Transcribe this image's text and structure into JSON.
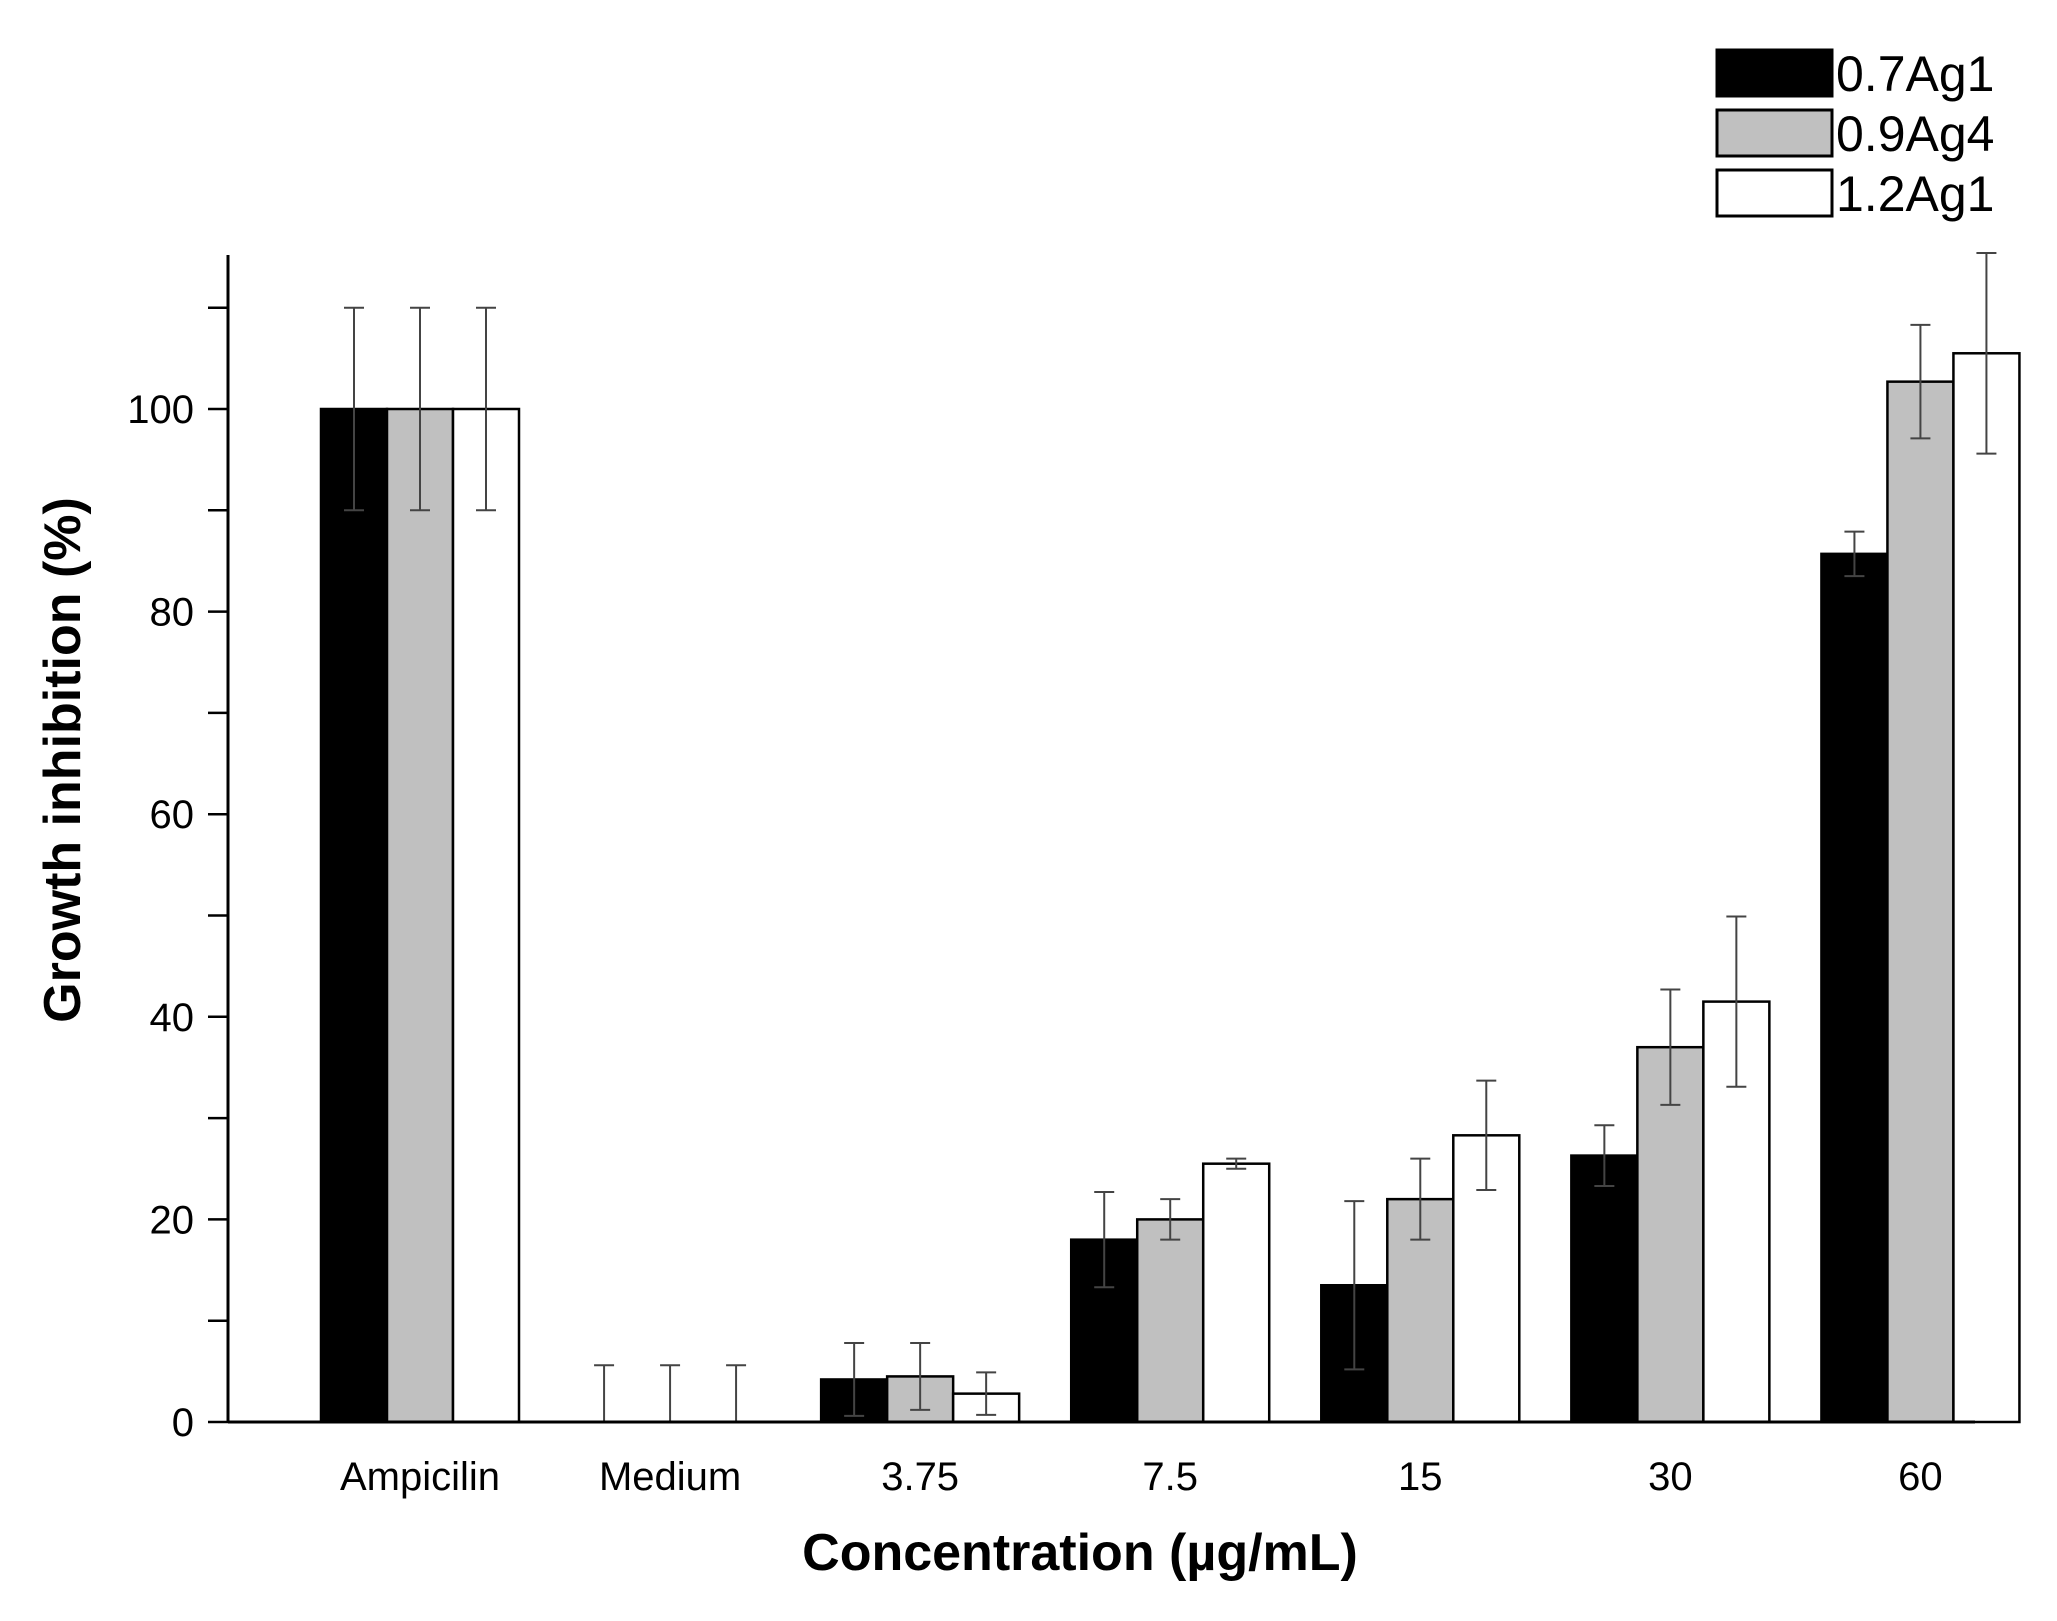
{
  "chart_data": {
    "type": "bar",
    "title": "",
    "xlabel": "Concentration (µg/mL)",
    "ylabel": "Growth inhibition (%)",
    "categories": [
      "Ampicilin",
      "Medium",
      "3.75",
      "7.5",
      "15",
      "30",
      "60"
    ],
    "ylim": [
      0,
      115
    ],
    "yticks": [
      0,
      20,
      40,
      60,
      80,
      100
    ],
    "ytick_labels": [
      "0",
      "20",
      "40",
      "60",
      "80",
      "100"
    ],
    "grid": false,
    "legend_position": "top-right",
    "series": [
      {
        "name": "0.7Ag1",
        "color": "#000000",
        "values": [
          100,
          0,
          4.2,
          18,
          13.5,
          26.3,
          85.7
        ],
        "errors": [
          10,
          5.6,
          3.6,
          4.7,
          8.3,
          3,
          2.2
        ]
      },
      {
        "name": "0.9Ag4",
        "color": "#c0c0c0",
        "values": [
          100,
          0,
          4.5,
          20,
          22,
          37,
          102.7
        ],
        "errors": [
          10,
          5.6,
          3.3,
          2,
          4,
          5.7,
          5.6
        ]
      },
      {
        "name": "1.2Ag1",
        "color": "#ffffff",
        "values": [
          100,
          0,
          2.8,
          25.5,
          28.3,
          41.5,
          105.5
        ],
        "errors": [
          10,
          5.6,
          2.1,
          0.5,
          5.4,
          8.4,
          9.9
        ]
      }
    ]
  }
}
